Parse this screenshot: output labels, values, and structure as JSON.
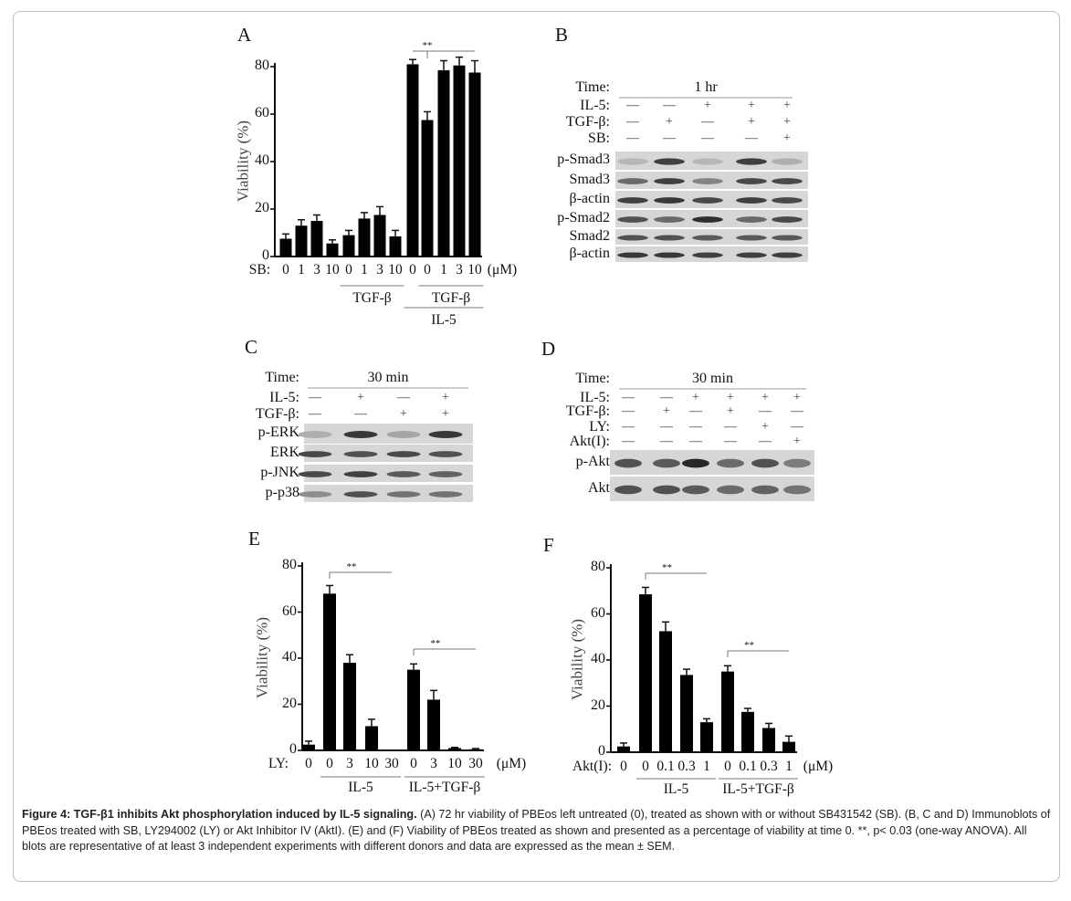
{
  "figure": {
    "caption_title": "Figure 4: TGF-β1 inhibits Akt phosphorylation induced by IL-5 signaling.",
    "caption_body": " (A) 72 hr viability of PBEos left untreated (0), treated as shown with or without SB431542 (SB). (B, C and D) Immunoblots of PBEos treated with SB, LY294002 (LY) or Akt Inhibitor IV (AktI). (E) and (F) Viability of PBEos treated as shown and presented as a percentage of viability at time 0. **, p< 0.03 (one-way ANOVA). All blots are representative of at least 3 independent experiments with different donors and data are expressed as the mean ± SEM."
  },
  "chart_data": [
    {
      "panel": "A",
      "type": "bar",
      "title": "",
      "ylabel": "Viability (%)",
      "xlabel": "",
      "ylim": [
        0,
        80
      ],
      "yticks": [
        "0",
        "20",
        "40",
        "60",
        "80"
      ],
      "x_prefix": "SB:",
      "x_units": "(μM)",
      "categories": [
        "0",
        "1",
        "3",
        "10",
        "0",
        "1",
        "3",
        "10",
        "0",
        "0",
        "1",
        "3",
        "10"
      ],
      "values": [
        7.5,
        13,
        15,
        5.5,
        9,
        16,
        17.5,
        8.5,
        81,
        57.5,
        78.5,
        80.5,
        77.5
      ],
      "errors": [
        2,
        2.5,
        2.5,
        1.5,
        2,
        2.5,
        3.5,
        2.5,
        2,
        3.5,
        4,
        3.5,
        5
      ],
      "groups": [
        {
          "label": "TGF-β",
          "from": 4,
          "to": 7,
          "level": 1
        },
        {
          "label": "TGF-β",
          "from": 9,
          "to": 12,
          "level": 1
        },
        {
          "label": "IL-5",
          "from": 8,
          "to": 12,
          "level": 2
        }
      ],
      "significance": [
        {
          "label": "**",
          "from": 8,
          "to": 12,
          "tick": 9
        }
      ]
    },
    {
      "panel": "E",
      "type": "bar",
      "title": "",
      "ylabel": "Viability (%)",
      "xlabel": "",
      "ylim": [
        0,
        80
      ],
      "yticks": [
        "0",
        "20",
        "40",
        "60",
        "80"
      ],
      "x_prefix": "LY:",
      "x_units": "(μM)",
      "categories": [
        "0",
        "0",
        "3",
        "10",
        "30",
        "0",
        "3",
        "10",
        "30"
      ],
      "values": [
        2.5,
        68,
        38,
        10.5,
        0,
        35,
        22,
        1,
        0.5
      ],
      "errors": [
        1.5,
        3.5,
        3.5,
        3,
        0,
        2.5,
        4,
        0.3,
        0.3
      ],
      "groups": [
        {
          "label": "IL-5",
          "from": 1,
          "to": 4,
          "level": 1
        },
        {
          "label": "IL-5+TGF-β",
          "from": 5,
          "to": 8,
          "level": 1
        }
      ],
      "significance": [
        {
          "label": "**",
          "from": 1,
          "to": 4
        },
        {
          "label": "**",
          "from": 5,
          "to": 8
        }
      ]
    },
    {
      "panel": "F",
      "type": "bar",
      "title": "",
      "ylabel": "Viability (%)",
      "xlabel": "",
      "ylim": [
        0,
        80
      ],
      "yticks": [
        "0",
        "20",
        "40",
        "60",
        "80"
      ],
      "x_prefix": "Akt(I):",
      "x_units": "(μM)",
      "categories": [
        "0",
        "0",
        "0.1",
        "0.3",
        "1",
        "0",
        "0.1",
        "0.3",
        "1"
      ],
      "values": [
        2.5,
        68.5,
        52.5,
        33.5,
        13,
        35,
        17.5,
        10.5,
        4.5
      ],
      "errors": [
        1.5,
        3,
        4,
        2.5,
        1.5,
        2.5,
        1.5,
        2,
        2.5
      ],
      "groups": [
        {
          "label": "IL-5",
          "from": 1,
          "to": 4,
          "level": 1
        },
        {
          "label": "IL-5+TGF-β",
          "from": 5,
          "to": 8,
          "level": 1
        }
      ],
      "significance": [
        {
          "label": "**",
          "from": 1,
          "to": 4
        },
        {
          "label": "**",
          "from": 5,
          "to": 8
        }
      ]
    }
  ],
  "blots": [
    {
      "panel": "B",
      "time_label": "Time:",
      "time_value": "1 hr",
      "conditions": [
        {
          "label": "IL-5:",
          "values": [
            "—",
            "—",
            "+",
            "+",
            "+"
          ]
        },
        {
          "label": "TGF-β:",
          "values": [
            "—",
            "+",
            "—",
            "+",
            "+"
          ]
        },
        {
          "label": "SB:",
          "values": [
            "—",
            "—",
            "—",
            "—",
            "+"
          ]
        }
      ],
      "bands": [
        {
          "label": "p-Smad3",
          "intensity": [
            0.1,
            0.8,
            0.1,
            0.8,
            0.15
          ]
        },
        {
          "label": "Smad3",
          "intensity": [
            0.55,
            0.8,
            0.4,
            0.75,
            0.75
          ]
        },
        {
          "label": "β-actin",
          "intensity": [
            0.8,
            0.85,
            0.75,
            0.8,
            0.75
          ]
        },
        {
          "label": "p-Smad2",
          "intensity": [
            0.7,
            0.55,
            0.9,
            0.55,
            0.75
          ]
        },
        {
          "label": "Smad2",
          "intensity": [
            0.7,
            0.7,
            0.65,
            0.65,
            0.65
          ]
        },
        {
          "label": "β-actin",
          "intensity": [
            0.85,
            0.85,
            0.8,
            0.8,
            0.8
          ]
        }
      ]
    },
    {
      "panel": "C",
      "time_label": "Time:",
      "time_value": "30 min",
      "conditions": [
        {
          "label": "IL-5:",
          "values": [
            "—",
            "+",
            "—",
            "+"
          ]
        },
        {
          "label": "TGF-β:",
          "values": [
            "—",
            "—",
            "+",
            "+"
          ]
        }
      ],
      "bands": [
        {
          "label": "p-ERK",
          "intensity": [
            0.15,
            0.85,
            0.2,
            0.85
          ]
        },
        {
          "label": "ERK",
          "intensity": [
            0.75,
            0.7,
            0.75,
            0.7
          ]
        },
        {
          "label": "p-JNK",
          "intensity": [
            0.75,
            0.8,
            0.65,
            0.6
          ]
        },
        {
          "label": "p-p38",
          "intensity": [
            0.35,
            0.7,
            0.5,
            0.5
          ]
        }
      ]
    },
    {
      "panel": "D",
      "time_label": "Time:",
      "time_value": "30 min",
      "conditions": [
        {
          "label": "IL-5:",
          "values": [
            "—",
            "—",
            "+",
            "+",
            "+",
            "+"
          ]
        },
        {
          "label": "TGF-β:",
          "values": [
            "—",
            "+",
            "—",
            "+",
            "—",
            "—"
          ]
        },
        {
          "label": "LY:",
          "values": [
            "—",
            "—",
            "—",
            "—",
            "+",
            "—"
          ]
        },
        {
          "label": "Akt(I):",
          "values": [
            "—",
            "—",
            "—",
            "—",
            "—",
            "+"
          ]
        }
      ],
      "bands": [
        {
          "label": "p-Akt",
          "intensity": [
            0.7,
            0.65,
            0.95,
            0.55,
            0.7,
            0.45
          ]
        },
        {
          "label": "Akt",
          "intensity": [
            0.7,
            0.7,
            0.65,
            0.55,
            0.6,
            0.5
          ]
        }
      ]
    }
  ]
}
